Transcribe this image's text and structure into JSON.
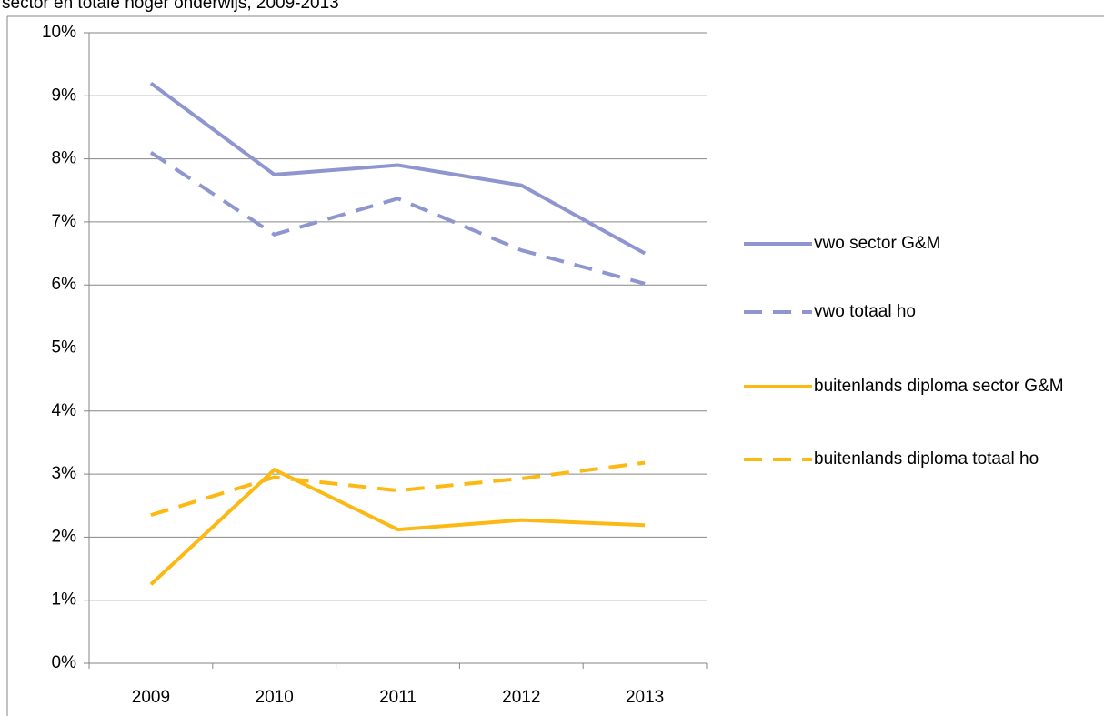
{
  "chart_data": {
    "type": "line",
    "title": "sector en totale hoger onderwijs, 2009-2013",
    "categories": [
      "2009",
      "2010",
      "2011",
      "2012",
      "2013"
    ],
    "series": [
      {
        "name": "vwo sector G&M",
        "color": "#8f96cf",
        "dashed": false,
        "values": [
          9.2,
          7.75,
          7.9,
          7.58,
          6.5
        ]
      },
      {
        "name": "vwo totaal ho",
        "color": "#8f96cf",
        "dashed": true,
        "values": [
          8.1,
          6.8,
          7.37,
          6.55,
          6.02
        ]
      },
      {
        "name": "buitenlands diploma sector G&M",
        "color": "#fdb913",
        "dashed": false,
        "values": [
          1.25,
          3.07,
          2.12,
          2.27,
          2.19
        ]
      },
      {
        "name": "buitenlands diploma totaal ho",
        "color": "#fdb913",
        "dashed": true,
        "values": [
          2.35,
          2.95,
          2.74,
          2.93,
          3.18
        ]
      }
    ],
    "ylim": [
      0,
      10
    ],
    "yticks": [
      {
        "value": 0,
        "label": "0%"
      },
      {
        "value": 1,
        "label": "1%"
      },
      {
        "value": 2,
        "label": "2%"
      },
      {
        "value": 3,
        "label": "3%"
      },
      {
        "value": 4,
        "label": "4%"
      },
      {
        "value": 5,
        "label": "5%"
      },
      {
        "value": 6,
        "label": "6%"
      },
      {
        "value": 7,
        "label": "7%"
      },
      {
        "value": 8,
        "label": "8%"
      },
      {
        "value": 9,
        "label": "9%"
      },
      {
        "value": 10,
        "label": "10%"
      }
    ],
    "grid": true,
    "legend": "right"
  }
}
